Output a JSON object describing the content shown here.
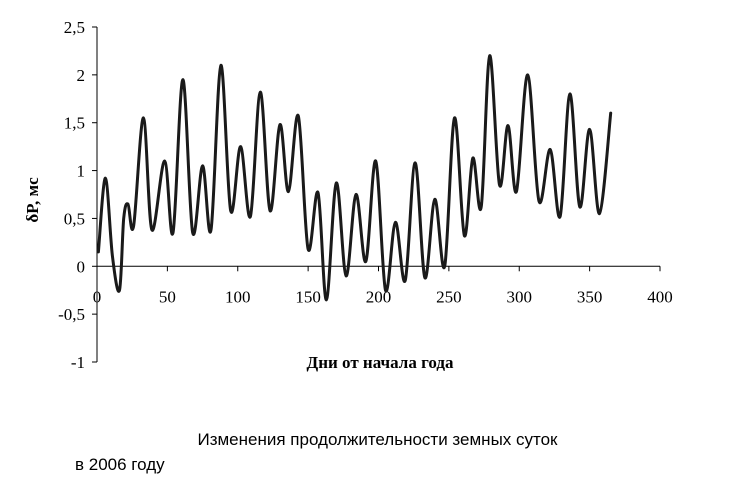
{
  "caption": {
    "line1": "Изменения продолжительности земных суток",
    "line2": "в 2006 году"
  },
  "chart_data": {
    "type": "line",
    "title": "",
    "xlabel": "Дни от начала года",
    "ylabel": "δP, мс",
    "xlim": [
      0,
      400
    ],
    "ylim": [
      -1,
      2.5
    ],
    "x_ticks": [
      0,
      50,
      100,
      150,
      200,
      250,
      300,
      350,
      400
    ],
    "x_tick_labels": [
      "0",
      "50",
      "100",
      "150",
      "200",
      "250",
      "300",
      "350",
      "400"
    ],
    "y_ticks": [
      2.5,
      2,
      1.5,
      1,
      0.5,
      0,
      -0.5,
      -1
    ],
    "y_tick_labels": [
      "2,5",
      "2",
      "1,5",
      "1",
      "0,5",
      "0",
      "-0,5",
      "-1"
    ],
    "grid": false,
    "line_color": "#1a1a1a",
    "series": [
      {
        "x": [
          1,
          6,
          11,
          16,
          19,
          22,
          26,
          33,
          39,
          48,
          54,
          61,
          68,
          75,
          81,
          88,
          95,
          102,
          109,
          116,
          123,
          130,
          136,
          143,
          150,
          157,
          163,
          170,
          177,
          184,
          191,
          198,
          205,
          212,
          219,
          226,
          233,
          240,
          247,
          254,
          261,
          267,
          273,
          279,
          286,
          292,
          298,
          306,
          314,
          322,
          329,
          336,
          343,
          350,
          357,
          365
        ],
        "y": [
          0.15,
          0.92,
          0.1,
          -0.25,
          0.5,
          0.65,
          0.42,
          1.55,
          0.38,
          1.1,
          0.35,
          1.95,
          0.35,
          1.05,
          0.38,
          2.1,
          0.58,
          1.25,
          0.52,
          1.82,
          0.58,
          1.48,
          0.78,
          1.57,
          0.18,
          0.77,
          -0.35,
          0.87,
          -0.1,
          0.75,
          0.05,
          1.1,
          -0.25,
          0.46,
          -0.15,
          1.08,
          -0.12,
          0.7,
          0.0,
          1.55,
          0.32,
          1.13,
          0.62,
          2.2,
          0.85,
          1.47,
          0.78,
          2.0,
          0.68,
          1.22,
          0.52,
          1.8,
          0.62,
          1.43,
          0.55,
          1.6
        ]
      }
    ]
  }
}
